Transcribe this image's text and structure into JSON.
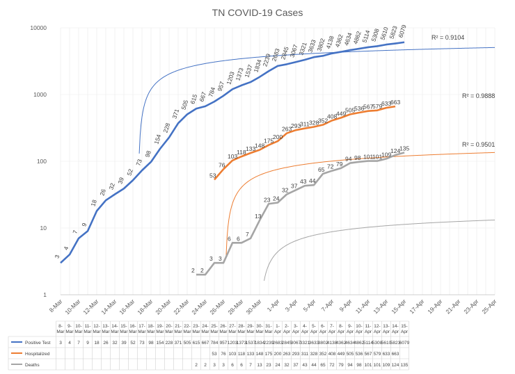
{
  "chart_data": {
    "type": "line",
    "title": "TN COVID-19 Cases",
    "y_scale": "log",
    "ylim": [
      1,
      10000
    ],
    "y_ticks": [
      "1",
      "10",
      "100",
      "1000",
      "10000"
    ],
    "x_dates": [
      "8-Mar",
      "9-Mar",
      "10-Mar",
      "11-Mar",
      "12-Mar",
      "13-Mar",
      "14-Mar",
      "15-Mar",
      "16-Mar",
      "17-Mar",
      "18-Mar",
      "19-Mar",
      "20-Mar",
      "21-Mar",
      "22-Mar",
      "23-Mar",
      "24-Mar",
      "25-Mar",
      "26-Mar",
      "27-Mar",
      "28-Mar",
      "29-Mar",
      "30-Mar",
      "31-Mar",
      "1-Apr",
      "2-Apr",
      "3-Apr",
      "4-Apr",
      "5-Apr",
      "6-Apr",
      "7-Apr",
      "8-Apr",
      "9-Apr",
      "10-Apr",
      "11-Apr",
      "12-Apr",
      "13-Apr",
      "14-Apr",
      "15-Apr",
      "16-Apr",
      "17-Apr",
      "18-Apr",
      "19-Apr",
      "20-Apr",
      "21-Apr",
      "22-Apr",
      "23-Apr",
      "24-Apr",
      "25-Apr"
    ],
    "x_axis_labels": [
      "8-Mar",
      "10-Mar",
      "12-Mar",
      "14-Mar",
      "16-Mar",
      "18-Mar",
      "20-Mar",
      "22-Mar",
      "24-Mar",
      "26-Mar",
      "28-Mar",
      "30-Mar",
      "1-Apr",
      "3-Apr",
      "5-Apr",
      "7-Apr",
      "9-Apr",
      "11-Apr",
      "13-Apr",
      "15-Apr",
      "17-Apr",
      "19-Apr",
      "21-Apr",
      "23-Apr",
      "25-Apr"
    ],
    "table_dates": [
      "8-Mar",
      "9-Mar",
      "10-Mar",
      "11-Mar",
      "12-Mar",
      "13-Mar",
      "14-Mar",
      "15-Mar",
      "16-Mar",
      "17-Mar",
      "18-Mar",
      "19-Mar",
      "20-Mar",
      "21-Mar",
      "22-Mar",
      "23-Mar",
      "24-Mar",
      "25-Mar",
      "26-Mar",
      "27-Mar",
      "28-Mar",
      "29-Mar",
      "30-Mar",
      "31-Mar",
      "1-Apr",
      "2-Apr",
      "3-Apr",
      "4-Apr",
      "5-Apr",
      "6-Apr",
      "7-Apr",
      "8-Apr",
      "9-Apr",
      "10-Apr",
      "11-Apr",
      "12-Apr",
      "13-Apr",
      "14-Apr",
      "15-Apr"
    ],
    "series": [
      {
        "name": "Positive Test",
        "color": "#4472C4",
        "values": [
          3,
          4,
          7,
          9,
          18,
          26,
          32,
          39,
          52,
          73,
          98,
          154,
          228,
          371,
          505,
          615,
          667,
          784,
          957,
          1203,
          1373,
          1537,
          1834,
          2239,
          2683,
          2845,
          3067,
          3321,
          3633,
          3802,
          4138,
          4362,
          4634,
          4862,
          5114,
          5308,
          5610,
          5823,
          6079
        ],
        "trend_r2": "R² = 0.9104"
      },
      {
        "name": "Hospitalized",
        "color": "#ED7D31",
        "values": [
          null,
          null,
          null,
          null,
          null,
          null,
          null,
          null,
          null,
          null,
          null,
          null,
          null,
          null,
          null,
          null,
          null,
          53,
          76,
          103,
          118,
          133,
          148,
          175,
          200,
          263,
          293,
          311,
          328,
          352,
          408,
          449,
          505,
          536,
          567,
          579,
          633,
          663,
          null
        ],
        "trend_r2": "R² = 0.9888"
      },
      {
        "name": "Deaths",
        "color": "#A5A5A5",
        "values": [
          null,
          null,
          null,
          null,
          null,
          null,
          null,
          null,
          null,
          null,
          null,
          null,
          null,
          null,
          null,
          2,
          2,
          3,
          3,
          6,
          6,
          7,
          13,
          23,
          24,
          32,
          37,
          43,
          44,
          65,
          72,
          79,
          94,
          98,
          101,
          101,
          109,
          124,
          135
        ],
        "trend_r2": "R² = 0.9501"
      }
    ],
    "table": {
      "row_labels": [
        "Positive Test",
        "Hospitalized",
        "Deaths"
      ],
      "rows": [
        [
          "3",
          "4",
          "7",
          "9",
          "18",
          "26",
          "32",
          "39",
          "52",
          "73",
          "98",
          "154",
          "228",
          "371",
          "505",
          "615",
          "667",
          "784",
          "957",
          "1203",
          "1373",
          "1537",
          "1834",
          "2239",
          "2683",
          "2845",
          "3067",
          "3321",
          "3633",
          "3802",
          "4138",
          "4362",
          "4634",
          "4862",
          "5114",
          "5308",
          "5610",
          "5823",
          "6079"
        ],
        [
          "",
          "",
          "",
          "",
          "",
          "",
          "",
          "",
          "",
          "",
          "",
          "",
          "",
          "",
          "",
          "",
          "",
          "53",
          "76",
          "103",
          "118",
          "133",
          "148",
          "175",
          "200",
          "263",
          "293",
          "311",
          "328",
          "352",
          "408",
          "449",
          "505",
          "536",
          "567",
          "579",
          "633",
          "663",
          ""
        ],
        [
          "",
          "",
          "",
          "",
          "",
          "",
          "",
          "",
          "",
          "",
          "",
          "",
          "",
          "",
          "",
          "2",
          "2",
          "3",
          "3",
          "6",
          "6",
          "7",
          "13",
          "23",
          "24",
          "32",
          "37",
          "43",
          "44",
          "65",
          "72",
          "79",
          "94",
          "98",
          "101",
          "101",
          "109",
          "124",
          "135"
        ]
      ]
    }
  }
}
